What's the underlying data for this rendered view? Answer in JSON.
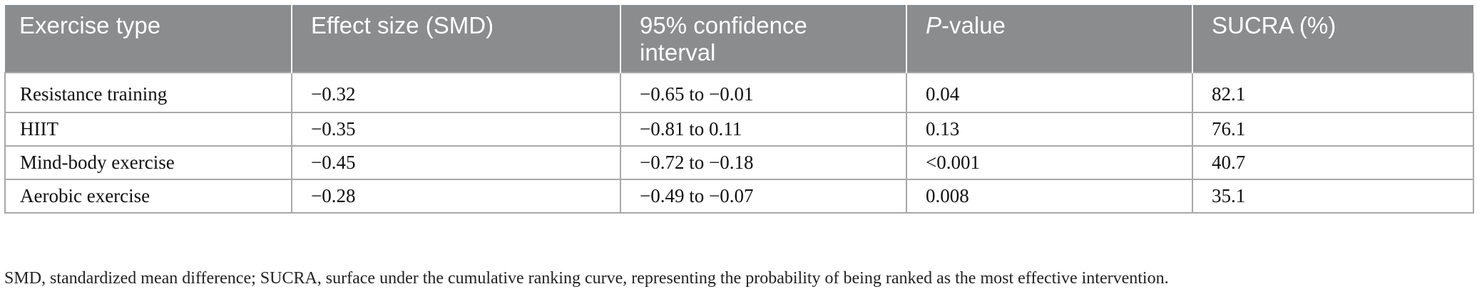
{
  "table": {
    "headers": [
      {
        "text": "Exercise type"
      },
      {
        "text": "Effect size (SMD)"
      },
      {
        "text": "95% confidence interval"
      },
      {
        "italic": "P",
        "rest": "-value"
      },
      {
        "text": "SUCRA (%)"
      }
    ],
    "rows": [
      [
        "Resistance training",
        "−0.32",
        "−0.65 to −0.01",
        "0.04",
        "82.1"
      ],
      [
        "HIIT",
        "−0.35",
        "−0.81 to 0.11",
        "0.13",
        "76.1"
      ],
      [
        "Mind-body exercise",
        "−0.45",
        "−0.72 to −0.18",
        "<0.001",
        "40.7"
      ],
      [
        "Aerobic exercise",
        "−0.28",
        "−0.49 to −0.07",
        "0.008",
        "35.1"
      ]
    ]
  },
  "footnote": "SMD, standardized mean difference; SUCRA, surface under the cumulative ranking curve, representing the probability of being ranked as the most effective intervention.",
  "colors": {
    "header_bg": "#8a8c8e",
    "header_text": "#ffffff",
    "grid": "#a8a8a8"
  }
}
